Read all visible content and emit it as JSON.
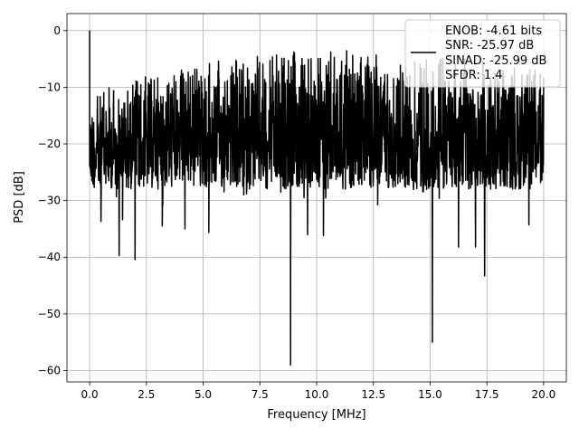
{
  "chart_data": {
    "type": "line",
    "title": "",
    "xlabel": "Frequency [MHz]",
    "ylabel": "PSD [dB]",
    "xlim": [
      -1.0,
      21.0
    ],
    "ylim": [
      -62.0,
      3.0
    ],
    "grid": true,
    "x_ticks": [
      "0.0",
      "2.5",
      "5.0",
      "7.5",
      "10.0",
      "12.5",
      "15.0",
      "17.5",
      "20.0"
    ],
    "x_tick_values": [
      0,
      2.5,
      5,
      7.5,
      10,
      12.5,
      15,
      17.5,
      20
    ],
    "y_ticks": [
      "0",
      "−10",
      "−20",
      "−30",
      "−40",
      "−50",
      "−60"
    ],
    "y_tick_values": [
      0,
      -10,
      -20,
      -30,
      -40,
      -50,
      -60
    ],
    "legend": {
      "placement": "top-right",
      "entries": [
        "ENOB: -4.61 bits",
        "SNR: -25.97 dB",
        "SINAD: -25.99 dB",
        "SFDR: 1.4"
      ]
    },
    "series": [
      {
        "name": "PSD",
        "color": "#000000",
        "x_range": [
          0,
          20
        ],
        "upper_envelope": {
          "x": [
            0.1,
            1,
            2,
            3,
            4,
            5,
            6,
            7,
            8,
            9,
            10,
            11,
            12,
            13,
            14,
            15,
            16,
            17,
            18,
            19,
            20
          ],
          "y": [
            -12,
            -9,
            -8,
            -7,
            -6,
            -5,
            -5,
            -4.5,
            -4,
            -3.5,
            -3.5,
            -3.5,
            -3.5,
            -4,
            -4,
            -4.5,
            -4.5,
            -5,
            -5,
            -5,
            -5
          ]
        },
        "typical_floor_db": -28,
        "peaks": [
          {
            "x": 0.0,
            "y": 0.0
          }
        ],
        "dips": [
          {
            "x": 0.5,
            "y": -33.7
          },
          {
            "x": 1.3,
            "y": -39.7
          },
          {
            "x": 1.45,
            "y": -33.4
          },
          {
            "x": 2.0,
            "y": -40.4
          },
          {
            "x": 3.2,
            "y": -34.5
          },
          {
            "x": 4.2,
            "y": -35.0
          },
          {
            "x": 5.25,
            "y": -35.6
          },
          {
            "x": 8.85,
            "y": -59.0
          },
          {
            "x": 9.6,
            "y": -36.0
          },
          {
            "x": 10.3,
            "y": -36.2
          },
          {
            "x": 15.1,
            "y": -55.0
          },
          {
            "x": 16.25,
            "y": -38.2
          },
          {
            "x": 17.0,
            "y": -38.2
          },
          {
            "x": 17.4,
            "y": -43.3
          },
          {
            "x": 19.35,
            "y": -34.3
          }
        ]
      }
    ]
  }
}
